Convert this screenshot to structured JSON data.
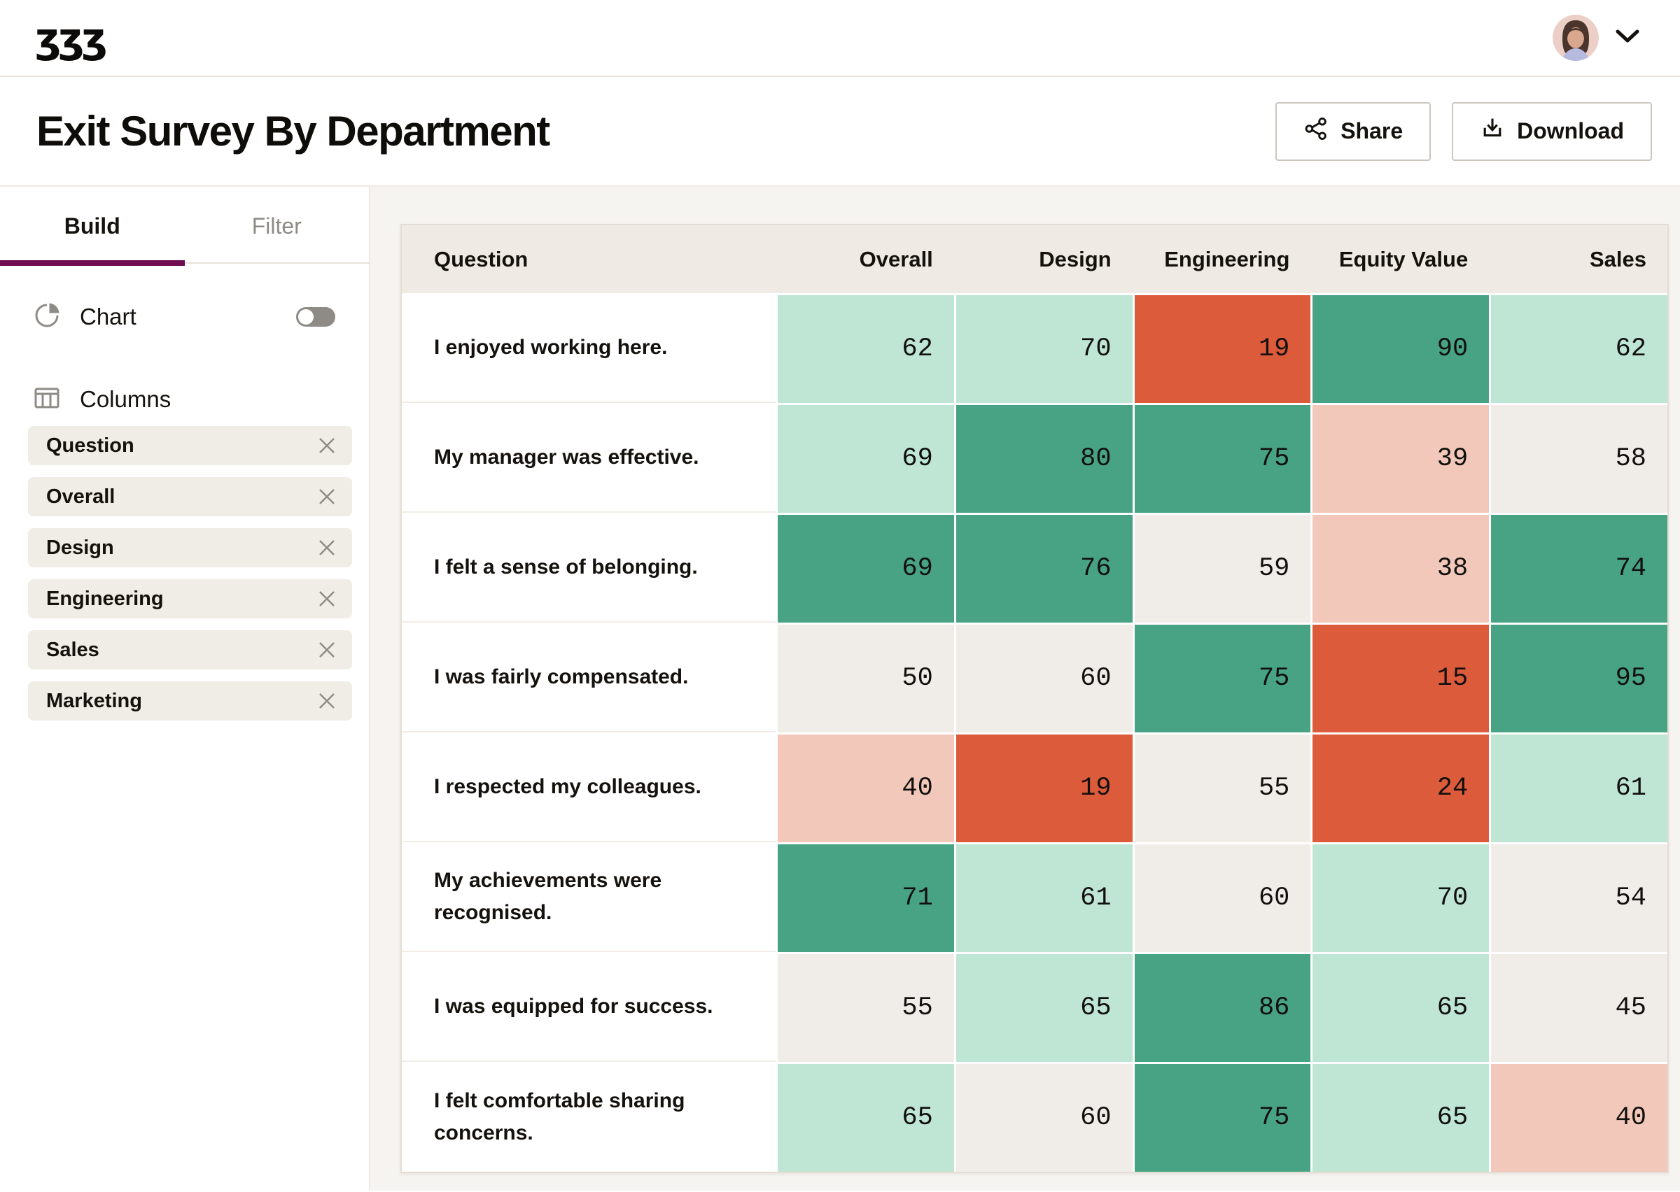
{
  "topbar": {
    "logo_glyphs": "ʒʒʒ",
    "logo_name": "rippling-monogram"
  },
  "header": {
    "title": "Exit Survey By Department",
    "share_label": "Share",
    "download_label": "Download"
  },
  "sidebar": {
    "tabs": [
      {
        "label": "Build",
        "active": true
      },
      {
        "label": "Filter",
        "active": false
      }
    ],
    "chart": {
      "label": "Chart",
      "enabled": false
    },
    "columns": {
      "label": "Columns",
      "chips": [
        "Question",
        "Overall",
        "Design",
        "Engineering",
        "Sales",
        "Marketing"
      ]
    }
  },
  "table": {
    "columns": [
      "Question",
      "Overall",
      "Design",
      "Engineering",
      "Equity Value",
      "Sales"
    ],
    "rows": [
      {
        "question": "I enjoyed working here.",
        "values": [
          62,
          70,
          19,
          90,
          62
        ],
        "tones": [
          "mint",
          "mint",
          "orange",
          "green",
          "mint"
        ]
      },
      {
        "question": "My manager was effective.",
        "values": [
          69,
          80,
          75,
          39,
          58
        ],
        "tones": [
          "mint",
          "green",
          "green",
          "pink",
          "beige"
        ]
      },
      {
        "question": "I felt a sense of belonging.",
        "values": [
          69,
          76,
          59,
          38,
          74
        ],
        "tones": [
          "green",
          "green",
          "beige",
          "pink",
          "green"
        ]
      },
      {
        "question": "I was fairly compensated.",
        "values": [
          50,
          60,
          75,
          15,
          95
        ],
        "tones": [
          "beige",
          "beige",
          "green",
          "orange",
          "green"
        ]
      },
      {
        "question": "I respected my colleagues.",
        "values": [
          40,
          19,
          55,
          24,
          61
        ],
        "tones": [
          "pink",
          "orange",
          "beige",
          "orange",
          "mint"
        ]
      },
      {
        "question": "My achievements were recognised.",
        "values": [
          71,
          61,
          60,
          70,
          54
        ],
        "tones": [
          "green",
          "mint",
          "beige",
          "mint",
          "beige"
        ]
      },
      {
        "question": "I was equipped for success.",
        "values": [
          55,
          65,
          86,
          65,
          45
        ],
        "tones": [
          "beige",
          "mint",
          "green",
          "mint",
          "beige"
        ]
      },
      {
        "question": "I felt comfortable sharing concerns.",
        "values": [
          65,
          60,
          75,
          65,
          40
        ],
        "tones": [
          "mint",
          "beige",
          "green",
          "mint",
          "pink"
        ]
      }
    ]
  },
  "colors": {
    "accent_plum": "#6f0b51",
    "heat_green": "#48a284",
    "heat_mint": "#bfe5d4",
    "heat_beige": "#f0ece8",
    "heat_pink": "#f2c8ba",
    "heat_orange": "#dc5b3a"
  }
}
